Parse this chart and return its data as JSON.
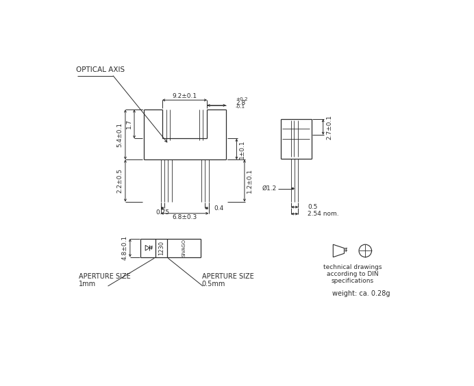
{
  "bg_color": "#ffffff",
  "line_color": "#2a2a2a",
  "text_color": "#2a2a2a",
  "fig_width": 6.92,
  "fig_height": 5.64,
  "annotations": {
    "optical_axis": "OPTICAL AXIS",
    "dim_92": "9.2±0.1",
    "dim_28_val": "2.8",
    "dim_28_plus": "+0.2",
    "dim_28_minus": "-0.1",
    "dim_17": "1.7",
    "dim_54": "5.4±0.1",
    "dim_22": "2.2±0.5",
    "dim_075": "0.75",
    "dim_04": "0.4",
    "dim_68": "6.8±0.3",
    "dim_1": "1±0.1",
    "dim_12": "1.2±0.1",
    "dim_27": "2.7±0.1",
    "dim_phi12": "Ø1.2",
    "dim_05": "0.5",
    "dim_254": "2.54 nom.",
    "dim_48": "4.8±0.1",
    "aperture_size_1": "APERTURE SIZE",
    "aperture_val_1": "1mm",
    "aperture_size_2": "APERTURE SIZE",
    "aperture_val_2": "0.5mm",
    "tech_note": "technical drawings\naccording to DIN\nspecifications",
    "weight": "weight: ca. 0.28g",
    "text_1230": "1230",
    "text_sivago": "SIVAGO"
  }
}
